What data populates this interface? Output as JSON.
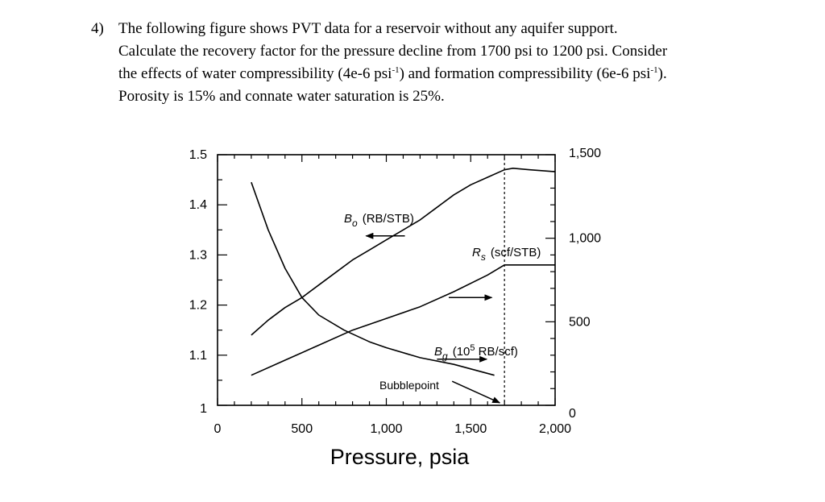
{
  "question": {
    "number": "4)",
    "line1": "The following figure shows PVT data for a reservoir without any aquifer support.",
    "line2": "Calculate the recovery factor for the pressure decline from 1700 psi to 1200 psi. Consider",
    "line3_a": "the effects of water compressibility (4e-6 psi",
    "line3_sup1": "-1",
    "line3_b": ") and formation compressibility (6e-6 psi",
    "line3_sup2": "-1",
    "line3_c": ").",
    "line4": "Porosity is 15% and connate water saturation is 25%."
  },
  "chart_data": {
    "type": "line",
    "xlabel": "Pressure, psia",
    "xlim": [
      0,
      2000
    ],
    "xticks": [
      "0",
      "500",
      "1,000",
      "1,500",
      "2,000"
    ],
    "ylim_left": [
      1,
      1.5
    ],
    "yticks_left": [
      "1",
      "1.1",
      "1.2",
      "1.3",
      "1.4",
      "1.5"
    ],
    "ylim_right": [
      0,
      1500
    ],
    "yticks_right": [
      "0",
      "500",
      "1,000",
      "1,500"
    ],
    "grid": false,
    "annotations": {
      "bo_symbol": "B",
      "bo_sub": "o",
      "bo_unit": "(RB/STB)",
      "rs_symbol": "R",
      "rs_sub": "s",
      "rs_unit": "(scf/STB)",
      "bg_symbol": "B",
      "bg_sub": "g",
      "bg_unit_a": "(10",
      "bg_unit_sup": "5",
      "bg_unit_b": " RB/scf)",
      "bubblepoint": "Bubblepoint",
      "bubblepoint_pressure": 1700
    },
    "series": [
      {
        "key": "Bo",
        "axis": "left",
        "x": [
          200,
          300,
          400,
          500,
          600,
          700,
          800,
          900,
          1000,
          1100,
          1200,
          1300,
          1400,
          1500,
          1600,
          1700,
          1750,
          1850,
          2000
        ],
        "y": [
          1.14,
          1.17,
          1.195,
          1.215,
          1.24,
          1.265,
          1.29,
          1.31,
          1.33,
          1.35,
          1.37,
          1.395,
          1.42,
          1.44,
          1.455,
          1.47,
          1.473,
          1.47,
          1.466
        ]
      },
      {
        "key": "Rs",
        "axis": "right",
        "x": [
          200,
          400,
          600,
          800,
          1000,
          1200,
          1400,
          1600,
          1700,
          2000
        ],
        "y": [
          180,
          270,
          360,
          450,
          520,
          590,
          680,
          780,
          840,
          840
        ]
      },
      {
        "key": "Bg",
        "axis": "right",
        "x": [
          200,
          300,
          400,
          500,
          600,
          750,
          900,
          1000,
          1200,
          1400,
          1640
        ],
        "y": [
          1335,
          1050,
          820,
          645,
          540,
          450,
          380,
          345,
          285,
          245,
          180
        ]
      }
    ]
  }
}
